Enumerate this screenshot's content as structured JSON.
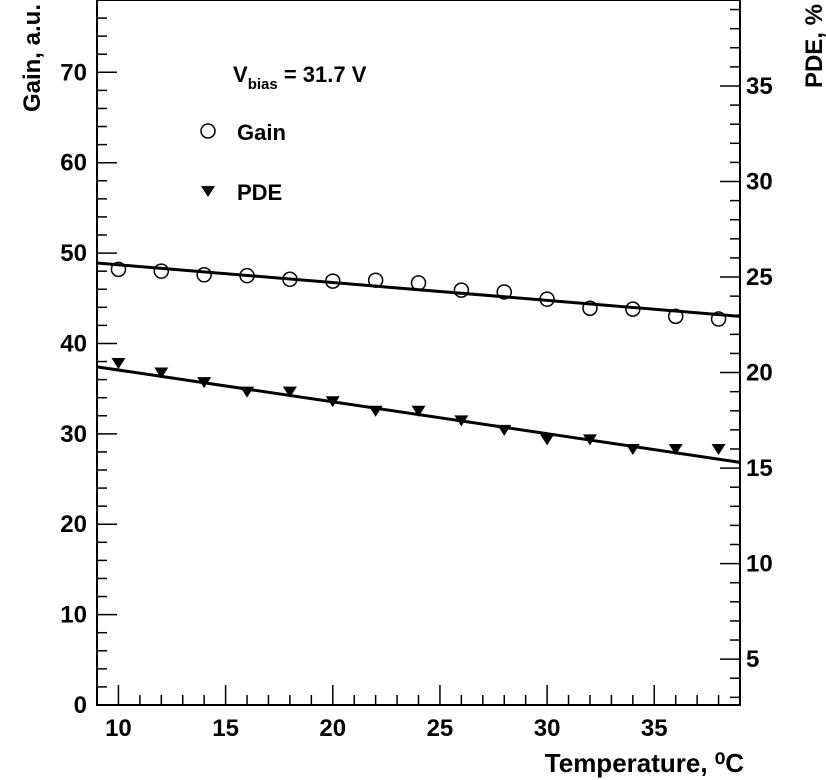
{
  "chart_data": {
    "type": "scatter",
    "title": "",
    "xlabel": "Temperature, ⁰C",
    "ylabel": "Gain, a.u.",
    "y2label": "PDE, %",
    "annotation": {
      "main": "V",
      "subscript": "bias",
      "rest": " = 31.7 V"
    },
    "xlim": [
      9,
      39
    ],
    "ylim": [
      0,
      78
    ],
    "y2lim": [
      2.6,
      39.5
    ],
    "x_ticks": [
      10,
      15,
      20,
      25,
      30,
      35
    ],
    "y_ticks": [
      0,
      10,
      20,
      30,
      40,
      50,
      60,
      70
    ],
    "y2_ticks": [
      5,
      10,
      15,
      20,
      25,
      30,
      35
    ],
    "legend_position": "top-left",
    "grid": false,
    "series": [
      {
        "name": "Gain",
        "axis": "left",
        "marker": "open-circle",
        "x": [
          10,
          12,
          14,
          16,
          18,
          20,
          22,
          24,
          26,
          28,
          30,
          32,
          34,
          36,
          38
        ],
        "y": [
          48.2,
          48.0,
          47.6,
          47.5,
          47.1,
          46.9,
          47.0,
          46.7,
          45.9,
          45.7,
          44.9,
          43.9,
          43.8,
          43.0,
          42.7
        ],
        "fit": {
          "x": [
            9,
            39
          ],
          "y": [
            48.9,
            43.0
          ]
        }
      },
      {
        "name": "PDE",
        "axis": "right",
        "marker": "filled-down-triangle",
        "x": [
          10,
          12,
          14,
          16,
          18,
          20,
          22,
          24,
          26,
          28,
          30,
          32,
          34,
          36,
          38
        ],
        "y": [
          20.5,
          20.0,
          19.5,
          19.0,
          19.0,
          18.5,
          18.0,
          18.0,
          17.5,
          17.0,
          16.5,
          16.5,
          16.0,
          16.0,
          16.0
        ],
        "fit": {
          "x": [
            9,
            39
          ],
          "y": [
            20.3,
            15.3
          ]
        }
      }
    ]
  }
}
